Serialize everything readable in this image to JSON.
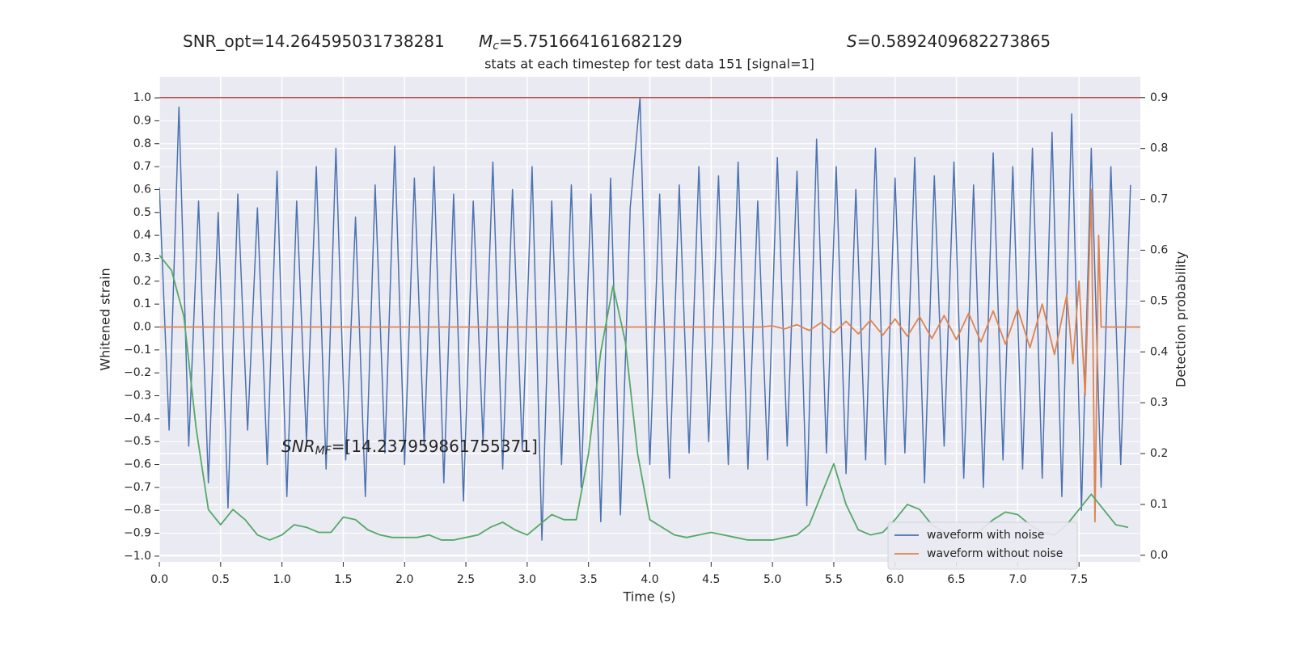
{
  "chart_data": {
    "type": "line",
    "title": "stats at each timestep for test data 151 [signal=1]",
    "annotations": [
      {
        "text": "SNR_opt=14.264595031738281"
      },
      {
        "symbol": "M",
        "subscript": "c",
        "text": "=5.751664161682129"
      },
      {
        "symbol": "S",
        "text": "=0.5892409682273865"
      },
      {
        "symbol": "SNR",
        "subscript": "MF",
        "text": "=[14.237959861755371]"
      }
    ],
    "xlabel": "Time (s)",
    "ylabel": "Whitened strain",
    "y2label": "Detection probability",
    "xlim": [
      0,
      8
    ],
    "ylim": [
      -1.025,
      1.092
    ],
    "y2lim": [
      -0.013,
      0.941
    ],
    "xticks": [
      {
        "value": 0,
        "label": "0.0"
      },
      0.5,
      {
        "value": 1,
        "label": "1.0"
      },
      1.5,
      {
        "value": 2,
        "label": "2.0"
      },
      2.5,
      {
        "value": 3,
        "label": "3.0"
      },
      3.5,
      {
        "value": 4,
        "label": "4.0"
      },
      4.5,
      {
        "value": 5,
        "label": "5.0"
      },
      5.5,
      {
        "value": 6,
        "label": "6.0"
      },
      6.5,
      {
        "value": 7,
        "label": "7.0"
      },
      7.5
    ],
    "yticks": [
      {
        "value": -1,
        "label": "−1.0"
      },
      {
        "value": -0.9,
        "label": "−0.9"
      },
      {
        "value": -0.8,
        "label": "−0.8"
      },
      {
        "value": -0.7,
        "label": "−0.7"
      },
      {
        "value": -0.6,
        "label": "−0.6"
      },
      {
        "value": -0.5,
        "label": "−0.5"
      },
      {
        "value": -0.4,
        "label": "−0.4"
      },
      {
        "value": -0.3,
        "label": "−0.3"
      },
      {
        "value": -0.2,
        "label": "−0.2"
      },
      {
        "value": -0.1,
        "label": "−0.1"
      },
      {
        "value": 0,
        "label": "0.0"
      },
      0.1,
      0.2,
      0.3,
      0.4,
      0.5,
      0.6,
      0.7,
      0.8,
      0.9,
      {
        "value": 1,
        "label": "1.0"
      }
    ],
    "y2ticks": [
      {
        "value": 0,
        "label": "0.0"
      },
      0.1,
      0.2,
      0.3,
      0.4,
      0.5,
      0.6,
      0.7,
      0.8,
      0.9
    ],
    "grid": true,
    "legend": "lower right",
    "hlines": [
      {
        "value": 0.9,
        "axis": "y2",
        "color": "#c44e52"
      }
    ],
    "series": [
      {
        "name": "waveform with noise",
        "color": "#4c72b0",
        "x": [
          0,
          0.08,
          0.16,
          0.24,
          0.32,
          0.4,
          0.48,
          0.56,
          0.64,
          0.72,
          0.8,
          0.88,
          0.96,
          1.04,
          1.12,
          1.2,
          1.28,
          1.36,
          1.44,
          1.52,
          1.6,
          1.68,
          1.76,
          1.84,
          1.92,
          2,
          2.08,
          2.16,
          2.24,
          2.32,
          2.4,
          2.48,
          2.56,
          2.64,
          2.72,
          2.8,
          2.88,
          2.96,
          3.04,
          3.12,
          3.2,
          3.28,
          3.36,
          3.44,
          3.52,
          3.6,
          3.68,
          3.76,
          3.84,
          3.92,
          4,
          4.08,
          4.16,
          4.24,
          4.32,
          4.4,
          4.48,
          4.56,
          4.64,
          4.72,
          4.8,
          4.88,
          4.96,
          5.04,
          5.12,
          5.2,
          5.28,
          5.36,
          5.44,
          5.52,
          5.6,
          5.68,
          5.76,
          5.84,
          5.92,
          6,
          6.08,
          6.16,
          6.24,
          6.32,
          6.4,
          6.48,
          6.56,
          6.64,
          6.72,
          6.8,
          6.88,
          6.96,
          7.04,
          7.12,
          7.2,
          7.28,
          7.36,
          7.44,
          7.52,
          7.6,
          7.68,
          7.76,
          7.84,
          7.92
        ],
        "values": [
          0.61,
          -0.45,
          0.96,
          -0.52,
          0.55,
          -0.68,
          0.5,
          -0.79,
          0.58,
          -0.45,
          0.52,
          -0.6,
          0.68,
          -0.74,
          0.55,
          -0.5,
          0.7,
          -0.62,
          0.78,
          -0.58,
          0.48,
          -0.74,
          0.62,
          -0.55,
          0.79,
          -0.6,
          0.65,
          -0.52,
          0.7,
          -0.68,
          0.58,
          -0.76,
          0.55,
          -0.5,
          0.72,
          -0.62,
          0.6,
          -0.54,
          0.7,
          -0.93,
          0.55,
          -0.6,
          0.62,
          -0.7,
          0.58,
          -0.85,
          0.65,
          -0.82,
          0.52,
          1.0,
          -0.6,
          0.58,
          -0.66,
          0.62,
          -0.55,
          0.7,
          -0.5,
          0.66,
          -0.6,
          0.72,
          -0.62,
          0.55,
          -0.58,
          0.74,
          -0.52,
          0.68,
          -0.78,
          0.82,
          -0.55,
          0.7,
          -0.64,
          0.6,
          -0.58,
          0.78,
          -0.6,
          0.65,
          -0.55,
          0.74,
          -0.68,
          0.66,
          -0.52,
          0.72,
          -0.66,
          0.62,
          -0.7,
          0.76,
          -0.58,
          0.7,
          -0.62,
          0.78,
          -0.66,
          0.85,
          -0.74,
          0.93,
          -0.8,
          0.78,
          -0.7,
          0.7,
          -0.6,
          0.62
        ]
      },
      {
        "name": "waveform without noise",
        "color": "#dd8452",
        "x": [
          0,
          4.9,
          5,
          5.1,
          5.2,
          5.3,
          5.4,
          5.5,
          5.6,
          5.7,
          5.8,
          5.9,
          6,
          6.1,
          6.2,
          6.3,
          6.4,
          6.5,
          6.6,
          6.7,
          6.8,
          6.9,
          7,
          7.1,
          7.2,
          7.3,
          7.4,
          7.45,
          7.5,
          7.55,
          7.6,
          7.63,
          7.66,
          7.68,
          8
        ],
        "values": [
          0,
          0,
          0.005,
          -0.008,
          0.01,
          -0.015,
          0.02,
          -0.025,
          0.025,
          -0.03,
          0.03,
          -0.035,
          0.035,
          -0.04,
          0.045,
          -0.05,
          0.05,
          -0.055,
          0.06,
          -0.065,
          0.07,
          -0.075,
          0.08,
          -0.09,
          0.1,
          -0.12,
          0.14,
          -0.16,
          0.2,
          -0.3,
          0.6,
          -0.85,
          0.4,
          0,
          0
        ]
      },
      {
        "color": "#55a868",
        "axis": "y2",
        "x": [
          0,
          0.1,
          0.2,
          0.3,
          0.4,
          0.5,
          0.6,
          0.7,
          0.8,
          0.9,
          1,
          1.1,
          1.2,
          1.3,
          1.4,
          1.5,
          1.6,
          1.7,
          1.8,
          1.9,
          2,
          2.1,
          2.2,
          2.3,
          2.4,
          2.5,
          2.6,
          2.7,
          2.8,
          2.9,
          3,
          3.1,
          3.2,
          3.3,
          3.4,
          3.5,
          3.6,
          3.7,
          3.8,
          3.9,
          4,
          4.1,
          4.2,
          4.3,
          4.4,
          4.5,
          4.6,
          4.7,
          4.8,
          4.9,
          5,
          5.1,
          5.2,
          5.3,
          5.4,
          5.5,
          5.6,
          5.7,
          5.8,
          5.9,
          6,
          6.1,
          6.2,
          6.3,
          6.4,
          6.5,
          6.6,
          6.7,
          6.8,
          6.9,
          7,
          7.1,
          7.2,
          7.3,
          7.4,
          7.5,
          7.6,
          7.7,
          7.8,
          7.9
        ],
        "values": [
          0.59,
          0.56,
          0.47,
          0.25,
          0.09,
          0.06,
          0.09,
          0.07,
          0.04,
          0.03,
          0.04,
          0.06,
          0.055,
          0.045,
          0.045,
          0.075,
          0.07,
          0.05,
          0.04,
          0.035,
          0.035,
          0.035,
          0.04,
          0.03,
          0.03,
          0.035,
          0.04,
          0.055,
          0.065,
          0.05,
          0.04,
          0.06,
          0.08,
          0.07,
          0.07,
          0.2,
          0.4,
          0.53,
          0.42,
          0.2,
          0.07,
          0.055,
          0.04,
          0.035,
          0.04,
          0.045,
          0.04,
          0.035,
          0.03,
          0.03,
          0.03,
          0.035,
          0.04,
          0.06,
          0.12,
          0.18,
          0.1,
          0.05,
          0.04,
          0.045,
          0.07,
          0.1,
          0.09,
          0.06,
          0.045,
          0.04,
          0.04,
          0.05,
          0.07,
          0.085,
          0.08,
          0.06,
          0.045,
          0.04,
          0.06,
          0.09,
          0.12,
          0.09,
          0.06,
          0.055
        ]
      }
    ]
  }
}
